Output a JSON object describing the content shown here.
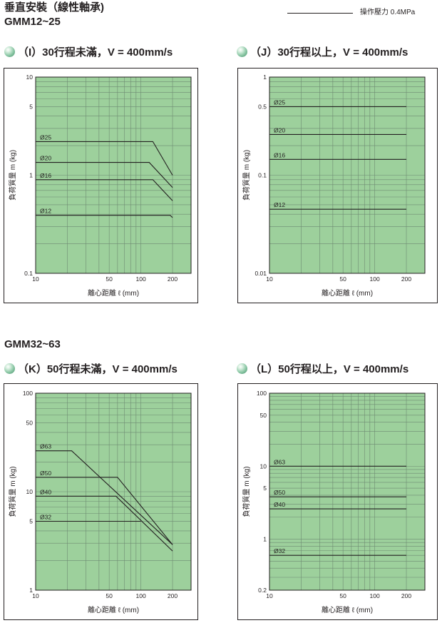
{
  "page": {
    "title": "垂直安裝（線性軸承)",
    "model_a": "GMM12~25",
    "model_b": "GMM32~63",
    "legend_label": "操作壓力 0.4MPa"
  },
  "colors": {
    "plot_bg": "#9dd09c",
    "grid": "#6e8a72",
    "line": "#231f20",
    "frame": "#231f20"
  },
  "charts": [
    {
      "id": "I",
      "heading": "（I）30行程未滿，V = 400mm/s",
      "chart_data": {
        "type": "line",
        "xlabel": "離心距離 ℓ (mm)",
        "ylabel": "負荷質量 m (kg)",
        "xscale": "log",
        "yscale": "log",
        "xlim": [
          10,
          300
        ],
        "ylim": [
          0.1,
          10
        ],
        "xticks": [
          10,
          50,
          100,
          200
        ],
        "yticks": [
          0.1,
          1,
          5,
          10
        ],
        "ytick_labels": [
          "0.1",
          "1",
          "5",
          "10"
        ],
        "grid": true,
        "series": [
          {
            "name": "Ø25",
            "x": [
              10,
              130,
              200
            ],
            "y": [
              2.2,
              2.2,
              1.0
            ]
          },
          {
            "name": "Ø20",
            "x": [
              10,
              120,
              200
            ],
            "y": [
              1.35,
              1.35,
              0.75
            ]
          },
          {
            "name": "Ø16",
            "x": [
              10,
              130,
              200
            ],
            "y": [
              0.9,
              0.9,
              0.55
            ]
          },
          {
            "name": "Ø12",
            "x": [
              10,
              190,
              200
            ],
            "y": [
              0.39,
              0.39,
              0.37
            ]
          }
        ]
      }
    },
    {
      "id": "J",
      "heading": "（J）30行程以上，V = 400mm/s",
      "chart_data": {
        "type": "line",
        "xlabel": "離心距離 ℓ (mm)",
        "ylabel": "負荷質量 m (kg)",
        "xscale": "log",
        "yscale": "log",
        "xlim": [
          10,
          300
        ],
        "ylim": [
          0.01,
          1
        ],
        "xticks": [
          10,
          50,
          100,
          200
        ],
        "yticks": [
          0.01,
          0.1,
          0.5,
          1
        ],
        "ytick_labels": [
          "0.01",
          "0.1",
          "0.5",
          "1"
        ],
        "grid": true,
        "series": [
          {
            "name": "Ø25",
            "x": [
              10,
              200
            ],
            "y": [
              0.5,
              0.5
            ]
          },
          {
            "name": "Ø20",
            "x": [
              10,
              200
            ],
            "y": [
              0.26,
              0.26
            ]
          },
          {
            "name": "Ø16",
            "x": [
              10,
              200
            ],
            "y": [
              0.145,
              0.145
            ]
          },
          {
            "name": "Ø12",
            "x": [
              10,
              200
            ],
            "y": [
              0.045,
              0.045
            ]
          }
        ]
      }
    },
    {
      "id": "K",
      "heading": "（K）50行程未滿，V = 400mm/s",
      "chart_data": {
        "type": "line",
        "xlabel": "離心距離 ℓ (mm)",
        "ylabel": "負荷質量 m (kg)",
        "xscale": "log",
        "yscale": "log",
        "xlim": [
          10,
          300
        ],
        "ylim": [
          1,
          100
        ],
        "xticks": [
          10,
          50,
          100,
          200
        ],
        "yticks": [
          1,
          5,
          10,
          50,
          100
        ],
        "ytick_labels": [
          "1",
          "5",
          "10",
          "50",
          "100"
        ],
        "grid": true,
        "series": [
          {
            "name": "Ø63",
            "x": [
              10,
              22,
              200
            ],
            "y": [
              26,
              26,
              2.9
            ]
          },
          {
            "name": "Ø50",
            "x": [
              10,
              60,
              200
            ],
            "y": [
              14,
              14,
              2.9
            ]
          },
          {
            "name": "Ø40",
            "x": [
              10,
              58,
              200
            ],
            "y": [
              9,
              9,
              2.5
            ]
          },
          {
            "name": "Ø32",
            "x": [
              10,
              100
            ],
            "y": [
              5,
              5
            ]
          }
        ]
      }
    },
    {
      "id": "L",
      "heading": "（L）50行程以上，V = 400mm/s",
      "chart_data": {
        "type": "line",
        "xlabel": "離心距離 ℓ (mm)",
        "ylabel": "負荷質量 m (kg)",
        "xscale": "log",
        "yscale": "log",
        "xlim": [
          10,
          300
        ],
        "ylim": [
          0.2,
          100
        ],
        "xticks": [
          10,
          50,
          100,
          200
        ],
        "yticks": [
          0.2,
          1,
          5,
          10,
          50,
          100
        ],
        "ytick_labels": [
          "0.2",
          "1",
          "5",
          "10",
          "50",
          "100"
        ],
        "grid": true,
        "series": [
          {
            "name": "Ø63",
            "x": [
              10,
              200
            ],
            "y": [
              10,
              10
            ]
          },
          {
            "name": "Ø50",
            "x": [
              10,
              200
            ],
            "y": [
              3.8,
              3.8
            ]
          },
          {
            "name": "Ø40",
            "x": [
              10,
              200
            ],
            "y": [
              2.6,
              2.6
            ]
          },
          {
            "name": "Ø32",
            "x": [
              10,
              200
            ],
            "y": [
              0.6,
              0.6
            ]
          }
        ]
      }
    }
  ]
}
